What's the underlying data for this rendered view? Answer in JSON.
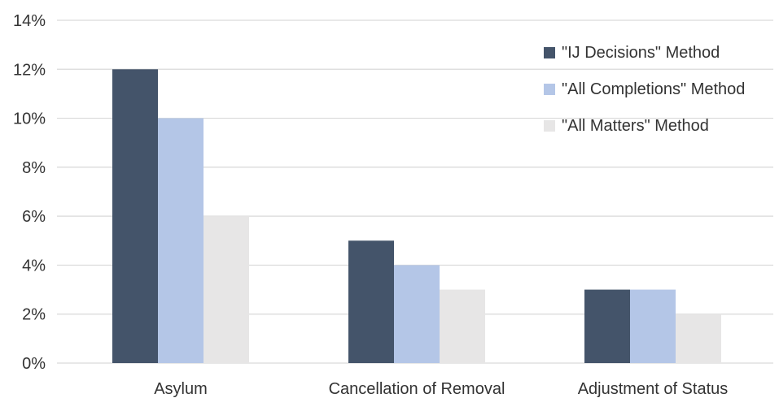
{
  "chart_data": {
    "type": "bar",
    "categories": [
      "Asylum",
      "Cancellation of Removal",
      "Adjustment of Status"
    ],
    "series": [
      {
        "name": "\"IJ Decisions\" Method",
        "values": [
          12,
          5,
          3
        ],
        "color": "#44546a"
      },
      {
        "name": "\"All Completions\" Method",
        "values": [
          10,
          4,
          3
        ],
        "color": "#b4c6e7"
      },
      {
        "name": "\"All Matters\" Method",
        "values": [
          6,
          3,
          2
        ],
        "color": "#e7e6e6"
      }
    ],
    "title": "",
    "xlabel": "",
    "ylabel": "",
    "ylim": [
      0,
      14
    ],
    "yticks": [
      0,
      2,
      4,
      6,
      8,
      10,
      12,
      14
    ],
    "ytick_labels": [
      "0%",
      "2%",
      "4%",
      "6%",
      "8%",
      "10%",
      "12%",
      "14%"
    ],
    "grid": true,
    "legend_position": "top-right"
  }
}
